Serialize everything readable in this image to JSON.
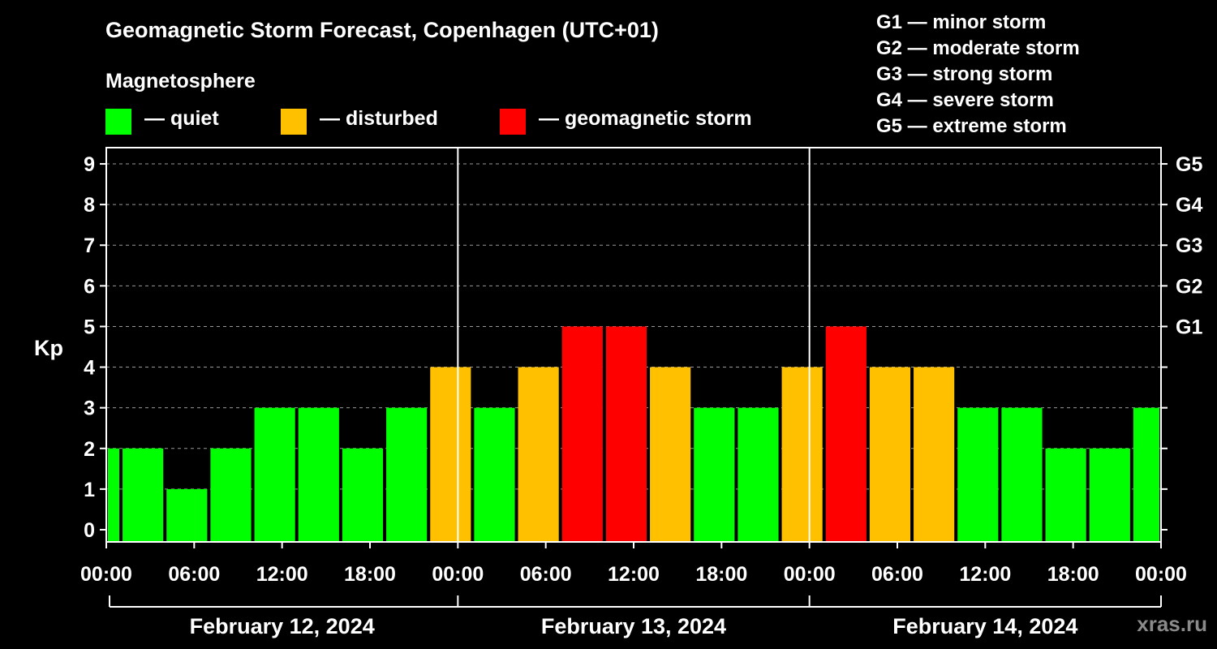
{
  "chart_data": {
    "type": "bar",
    "title": "Geomagnetic Storm Forecast, Copenhagen (UTC+01)",
    "ylabel": "Kp",
    "ylim": [
      -0.3,
      9.4
    ],
    "yticks": [
      "0",
      "1",
      "2",
      "3",
      "4",
      "5",
      "6",
      "7",
      "8",
      "9"
    ],
    "right_axis_labels": [
      {
        "kp": 5,
        "label": "G1"
      },
      {
        "kp": 6,
        "label": "G2"
      },
      {
        "kp": 7,
        "label": "G3"
      },
      {
        "kp": 8,
        "label": "G4"
      },
      {
        "kp": 9,
        "label": "G5"
      }
    ],
    "x_hours": [
      0,
      72
    ],
    "xticks": [
      "00:00",
      "06:00",
      "12:00",
      "18:00",
      "00:00",
      "06:00",
      "12:00",
      "18:00",
      "00:00",
      "06:00",
      "12:00",
      "18:00",
      "00:00"
    ],
    "days": [
      "February 12, 2024",
      "February 13, 2024",
      "February 14, 2024"
    ],
    "bars": [
      {
        "start": 0,
        "end": 1,
        "kp": 2
      },
      {
        "start": 1,
        "end": 4,
        "kp": 2
      },
      {
        "start": 4,
        "end": 7,
        "kp": 1
      },
      {
        "start": 7,
        "end": 10,
        "kp": 2
      },
      {
        "start": 10,
        "end": 13,
        "kp": 3
      },
      {
        "start": 13,
        "end": 16,
        "kp": 3
      },
      {
        "start": 16,
        "end": 19,
        "kp": 2
      },
      {
        "start": 19,
        "end": 22,
        "kp": 3
      },
      {
        "start": 22,
        "end": 25,
        "kp": 4
      },
      {
        "start": 25,
        "end": 28,
        "kp": 3
      },
      {
        "start": 28,
        "end": 31,
        "kp": 4
      },
      {
        "start": 31,
        "end": 34,
        "kp": 5
      },
      {
        "start": 34,
        "end": 37,
        "kp": 5
      },
      {
        "start": 37,
        "end": 40,
        "kp": 4
      },
      {
        "start": 40,
        "end": 43,
        "kp": 3
      },
      {
        "start": 43,
        "end": 46,
        "kp": 3
      },
      {
        "start": 46,
        "end": 49,
        "kp": 4
      },
      {
        "start": 49,
        "end": 52,
        "kp": 5
      },
      {
        "start": 52,
        "end": 55,
        "kp": 4
      },
      {
        "start": 55,
        "end": 58,
        "kp": 4
      },
      {
        "start": 58,
        "end": 61,
        "kp": 3
      },
      {
        "start": 61,
        "end": 64,
        "kp": 3
      },
      {
        "start": 64,
        "end": 67,
        "kp": 2
      },
      {
        "start": 67,
        "end": 70,
        "kp": 2
      },
      {
        "start": 70,
        "end": 72,
        "kp": 3
      }
    ],
    "thresholds": {
      "disturbed": 4,
      "storm": 5
    }
  },
  "magnetosphere": {
    "heading": "Magnetosphere",
    "items": [
      {
        "label": "— quiet",
        "color": "#00ff00"
      },
      {
        "label": "— disturbed",
        "color": "#ffc000"
      },
      {
        "label": "— geomagnetic storm",
        "color": "#ff0000"
      }
    ]
  },
  "storm_levels": [
    "G1 — minor storm",
    "G2 — moderate storm",
    "G3 — strong storm",
    "G4 — severe storm",
    "G5 — extreme storm"
  ],
  "watermark": "xras.ru"
}
